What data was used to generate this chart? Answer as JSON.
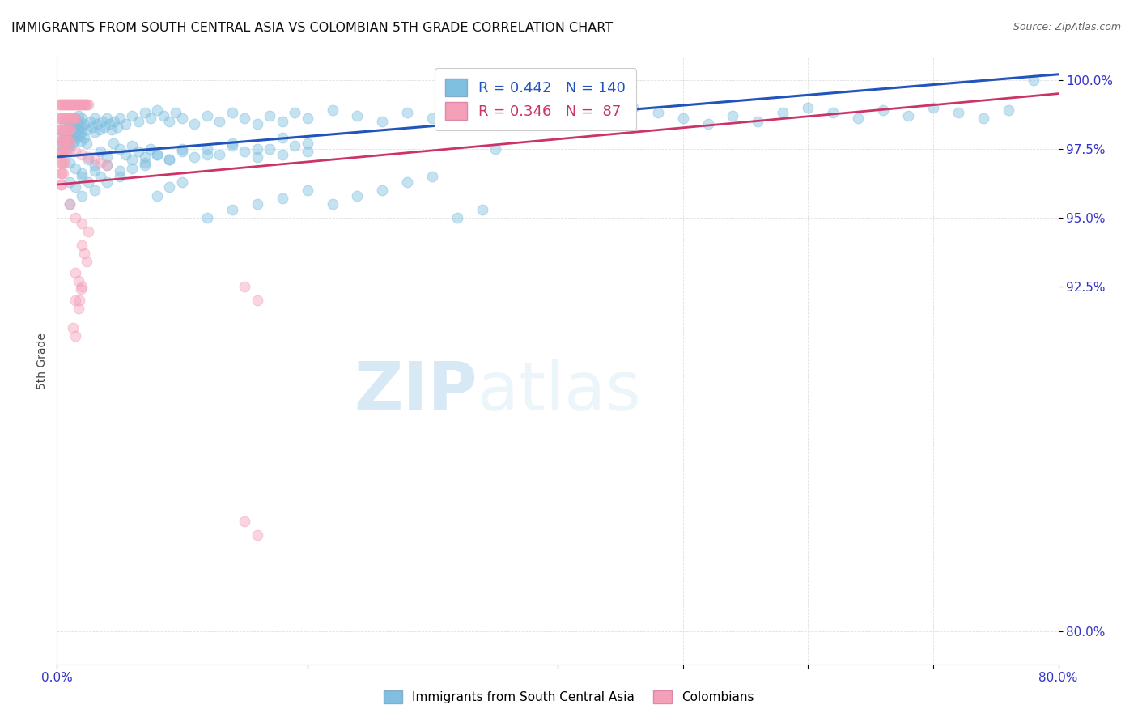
{
  "title": "IMMIGRANTS FROM SOUTH CENTRAL ASIA VS COLOMBIAN 5TH GRADE CORRELATION CHART",
  "source": "Source: ZipAtlas.com",
  "ylabel": "5th Grade",
  "ytick_labels": [
    "80.0%",
    "92.5%",
    "95.0%",
    "97.5%",
    "100.0%"
  ],
  "ytick_values": [
    0.8,
    0.925,
    0.95,
    0.975,
    1.0
  ],
  "xlim": [
    0.0,
    0.8
  ],
  "ylim": [
    0.788,
    1.008
  ],
  "legend_blue_label": "Immigrants from South Central Asia",
  "legend_pink_label": "Colombians",
  "r_blue": 0.442,
  "n_blue": 140,
  "r_pink": 0.346,
  "n_pink": 87,
  "blue_color": "#7fbfdf",
  "pink_color": "#f4a0b8",
  "blue_line_color": "#2255bb",
  "pink_line_color": "#cc3366",
  "blue_line": [
    [
      0.0,
      0.972
    ],
    [
      0.8,
      1.002
    ]
  ],
  "pink_line": [
    [
      0.0,
      0.962
    ],
    [
      0.8,
      0.995
    ]
  ],
  "blue_scatter": [
    [
      0.002,
      0.976
    ],
    [
      0.003,
      0.979
    ],
    [
      0.004,
      0.974
    ],
    [
      0.005,
      0.981
    ],
    [
      0.005,
      0.977
    ],
    [
      0.006,
      0.984
    ],
    [
      0.006,
      0.979
    ],
    [
      0.007,
      0.982
    ],
    [
      0.007,
      0.977
    ],
    [
      0.008,
      0.98
    ],
    [
      0.008,
      0.975
    ],
    [
      0.009,
      0.983
    ],
    [
      0.009,
      0.978
    ],
    [
      0.01,
      0.981
    ],
    [
      0.01,
      0.976
    ],
    [
      0.011,
      0.984
    ],
    [
      0.011,
      0.979
    ],
    [
      0.012,
      0.982
    ],
    [
      0.012,
      0.977
    ],
    [
      0.013,
      0.985
    ],
    [
      0.013,
      0.98
    ],
    [
      0.014,
      0.983
    ],
    [
      0.014,
      0.978
    ],
    [
      0.015,
      0.986
    ],
    [
      0.015,
      0.981
    ],
    [
      0.016,
      0.984
    ],
    [
      0.016,
      0.979
    ],
    [
      0.017,
      0.987
    ],
    [
      0.017,
      0.982
    ],
    [
      0.018,
      0.985
    ],
    [
      0.018,
      0.98
    ],
    [
      0.019,
      0.983
    ],
    [
      0.019,
      0.978
    ],
    [
      0.02,
      0.986
    ],
    [
      0.02,
      0.981
    ],
    [
      0.022,
      0.984
    ],
    [
      0.022,
      0.979
    ],
    [
      0.024,
      0.982
    ],
    [
      0.024,
      0.977
    ],
    [
      0.026,
      0.985
    ],
    [
      0.028,
      0.983
    ],
    [
      0.03,
      0.986
    ],
    [
      0.03,
      0.981
    ],
    [
      0.032,
      0.984
    ],
    [
      0.034,
      0.982
    ],
    [
      0.036,
      0.985
    ],
    [
      0.038,
      0.983
    ],
    [
      0.04,
      0.986
    ],
    [
      0.042,
      0.984
    ],
    [
      0.044,
      0.982
    ],
    [
      0.046,
      0.985
    ],
    [
      0.048,
      0.983
    ],
    [
      0.05,
      0.986
    ],
    [
      0.055,
      0.984
    ],
    [
      0.06,
      0.987
    ],
    [
      0.065,
      0.985
    ],
    [
      0.07,
      0.988
    ],
    [
      0.075,
      0.986
    ],
    [
      0.08,
      0.989
    ],
    [
      0.085,
      0.987
    ],
    [
      0.09,
      0.985
    ],
    [
      0.095,
      0.988
    ],
    [
      0.1,
      0.986
    ],
    [
      0.11,
      0.984
    ],
    [
      0.12,
      0.987
    ],
    [
      0.13,
      0.985
    ],
    [
      0.14,
      0.988
    ],
    [
      0.15,
      0.986
    ],
    [
      0.16,
      0.984
    ],
    [
      0.17,
      0.987
    ],
    [
      0.18,
      0.985
    ],
    [
      0.19,
      0.988
    ],
    [
      0.2,
      0.986
    ],
    [
      0.22,
      0.989
    ],
    [
      0.24,
      0.987
    ],
    [
      0.26,
      0.985
    ],
    [
      0.28,
      0.988
    ],
    [
      0.3,
      0.986
    ],
    [
      0.32,
      0.989
    ],
    [
      0.34,
      0.987
    ],
    [
      0.36,
      0.985
    ],
    [
      0.38,
      0.988
    ],
    [
      0.4,
      0.986
    ],
    [
      0.42,
      0.984
    ],
    [
      0.44,
      0.987
    ],
    [
      0.46,
      0.99
    ],
    [
      0.48,
      0.988
    ],
    [
      0.5,
      0.986
    ],
    [
      0.52,
      0.984
    ],
    [
      0.54,
      0.987
    ],
    [
      0.56,
      0.985
    ],
    [
      0.58,
      0.988
    ],
    [
      0.6,
      0.99
    ],
    [
      0.62,
      0.988
    ],
    [
      0.64,
      0.986
    ],
    [
      0.66,
      0.989
    ],
    [
      0.68,
      0.987
    ],
    [
      0.7,
      0.99
    ],
    [
      0.72,
      0.988
    ],
    [
      0.74,
      0.986
    ],
    [
      0.76,
      0.989
    ],
    [
      0.78,
      1.0
    ],
    [
      0.01,
      0.97
    ],
    [
      0.015,
      0.968
    ],
    [
      0.02,
      0.966
    ],
    [
      0.025,
      0.971
    ],
    [
      0.03,
      0.969
    ],
    [
      0.035,
      0.974
    ],
    [
      0.04,
      0.972
    ],
    [
      0.045,
      0.977
    ],
    [
      0.05,
      0.975
    ],
    [
      0.055,
      0.973
    ],
    [
      0.06,
      0.976
    ],
    [
      0.065,
      0.974
    ],
    [
      0.07,
      0.972
    ],
    [
      0.075,
      0.975
    ],
    [
      0.08,
      0.973
    ],
    [
      0.09,
      0.971
    ],
    [
      0.1,
      0.974
    ],
    [
      0.11,
      0.972
    ],
    [
      0.12,
      0.975
    ],
    [
      0.13,
      0.973
    ],
    [
      0.14,
      0.976
    ],
    [
      0.15,
      0.974
    ],
    [
      0.16,
      0.972
    ],
    [
      0.17,
      0.975
    ],
    [
      0.18,
      0.973
    ],
    [
      0.19,
      0.976
    ],
    [
      0.2,
      0.974
    ],
    [
      0.01,
      0.963
    ],
    [
      0.015,
      0.961
    ],
    [
      0.02,
      0.965
    ],
    [
      0.025,
      0.963
    ],
    [
      0.03,
      0.967
    ],
    [
      0.035,
      0.965
    ],
    [
      0.04,
      0.969
    ],
    [
      0.05,
      0.967
    ],
    [
      0.06,
      0.971
    ],
    [
      0.07,
      0.969
    ],
    [
      0.08,
      0.973
    ],
    [
      0.09,
      0.971
    ],
    [
      0.1,
      0.975
    ],
    [
      0.12,
      0.973
    ],
    [
      0.14,
      0.977
    ],
    [
      0.16,
      0.975
    ],
    [
      0.18,
      0.979
    ],
    [
      0.2,
      0.977
    ],
    [
      0.01,
      0.955
    ],
    [
      0.02,
      0.958
    ],
    [
      0.03,
      0.96
    ],
    [
      0.04,
      0.963
    ],
    [
      0.05,
      0.965
    ],
    [
      0.06,
      0.968
    ],
    [
      0.07,
      0.97
    ],
    [
      0.08,
      0.958
    ],
    [
      0.09,
      0.961
    ],
    [
      0.1,
      0.963
    ],
    [
      0.12,
      0.95
    ],
    [
      0.14,
      0.953
    ],
    [
      0.16,
      0.955
    ],
    [
      0.18,
      0.957
    ],
    [
      0.2,
      0.96
    ],
    [
      0.22,
      0.955
    ],
    [
      0.24,
      0.958
    ],
    [
      0.26,
      0.96
    ],
    [
      0.28,
      0.963
    ],
    [
      0.3,
      0.965
    ],
    [
      0.32,
      0.95
    ],
    [
      0.34,
      0.953
    ],
    [
      0.35,
      0.975
    ]
  ],
  "pink_scatter": [
    [
      0.002,
      0.991
    ],
    [
      0.003,
      0.991
    ],
    [
      0.004,
      0.991
    ],
    [
      0.005,
      0.991
    ],
    [
      0.006,
      0.991
    ],
    [
      0.007,
      0.991
    ],
    [
      0.008,
      0.991
    ],
    [
      0.009,
      0.991
    ],
    [
      0.01,
      0.991
    ],
    [
      0.011,
      0.991
    ],
    [
      0.012,
      0.991
    ],
    [
      0.013,
      0.991
    ],
    [
      0.014,
      0.991
    ],
    [
      0.015,
      0.991
    ],
    [
      0.016,
      0.991
    ],
    [
      0.017,
      0.991
    ],
    [
      0.018,
      0.991
    ],
    [
      0.019,
      0.991
    ],
    [
      0.02,
      0.991
    ],
    [
      0.021,
      0.991
    ],
    [
      0.022,
      0.991
    ],
    [
      0.023,
      0.991
    ],
    [
      0.024,
      0.991
    ],
    [
      0.025,
      0.991
    ],
    [
      0.002,
      0.986
    ],
    [
      0.003,
      0.986
    ],
    [
      0.004,
      0.986
    ],
    [
      0.005,
      0.986
    ],
    [
      0.006,
      0.986
    ],
    [
      0.007,
      0.986
    ],
    [
      0.008,
      0.986
    ],
    [
      0.009,
      0.986
    ],
    [
      0.01,
      0.986
    ],
    [
      0.011,
      0.986
    ],
    [
      0.012,
      0.986
    ],
    [
      0.013,
      0.986
    ],
    [
      0.014,
      0.986
    ],
    [
      0.015,
      0.986
    ],
    [
      0.002,
      0.982
    ],
    [
      0.003,
      0.982
    ],
    [
      0.004,
      0.982
    ],
    [
      0.005,
      0.982
    ],
    [
      0.006,
      0.982
    ],
    [
      0.007,
      0.982
    ],
    [
      0.008,
      0.982
    ],
    [
      0.009,
      0.982
    ],
    [
      0.01,
      0.982
    ],
    [
      0.011,
      0.982
    ],
    [
      0.003,
      0.978
    ],
    [
      0.004,
      0.978
    ],
    [
      0.005,
      0.978
    ],
    [
      0.006,
      0.978
    ],
    [
      0.007,
      0.978
    ],
    [
      0.008,
      0.978
    ],
    [
      0.009,
      0.978
    ],
    [
      0.01,
      0.978
    ],
    [
      0.003,
      0.974
    ],
    [
      0.004,
      0.974
    ],
    [
      0.005,
      0.974
    ],
    [
      0.006,
      0.974
    ],
    [
      0.007,
      0.974
    ],
    [
      0.003,
      0.97
    ],
    [
      0.004,
      0.97
    ],
    [
      0.005,
      0.97
    ],
    [
      0.006,
      0.97
    ],
    [
      0.003,
      0.966
    ],
    [
      0.004,
      0.966
    ],
    [
      0.005,
      0.966
    ],
    [
      0.003,
      0.962
    ],
    [
      0.004,
      0.962
    ],
    [
      0.01,
      0.975
    ],
    [
      0.015,
      0.974
    ],
    [
      0.02,
      0.973
    ],
    [
      0.025,
      0.972
    ],
    [
      0.03,
      0.971
    ],
    [
      0.035,
      0.97
    ],
    [
      0.04,
      0.969
    ],
    [
      0.01,
      0.955
    ],
    [
      0.015,
      0.95
    ],
    [
      0.02,
      0.948
    ],
    [
      0.025,
      0.945
    ],
    [
      0.02,
      0.94
    ],
    [
      0.022,
      0.937
    ],
    [
      0.024,
      0.934
    ],
    [
      0.015,
      0.93
    ],
    [
      0.017,
      0.927
    ],
    [
      0.019,
      0.924
    ],
    [
      0.015,
      0.92
    ],
    [
      0.017,
      0.917
    ],
    [
      0.013,
      0.91
    ],
    [
      0.015,
      0.907
    ],
    [
      0.02,
      0.925
    ],
    [
      0.018,
      0.92
    ],
    [
      0.15,
      0.925
    ],
    [
      0.16,
      0.92
    ],
    [
      0.15,
      0.84
    ],
    [
      0.16,
      0.835
    ]
  ],
  "watermark_zip": "ZIP",
  "watermark_atlas": "atlas",
  "background_color": "#ffffff",
  "grid_color": "#e0e0e0"
}
